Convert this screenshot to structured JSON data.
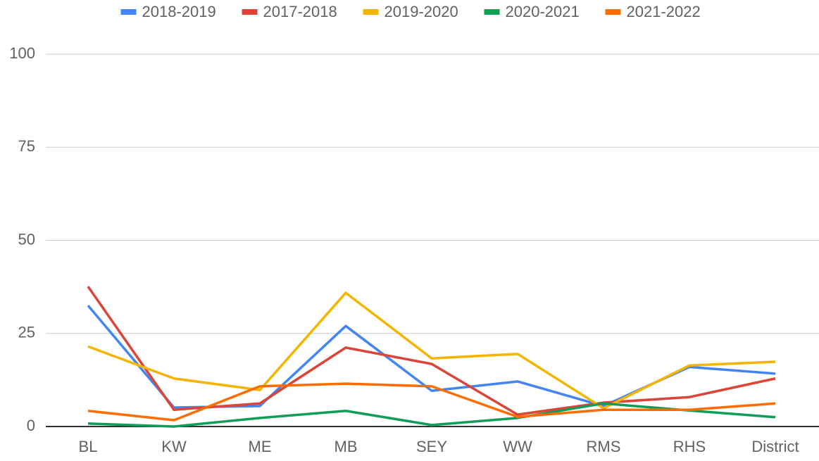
{
  "chart_data": {
    "type": "line",
    "categories": [
      "BL",
      "KW",
      "ME",
      "MB",
      "SEY",
      "WW",
      "RMS",
      "RHS",
      "District"
    ],
    "series": [
      {
        "name": "2018-2019",
        "color": "#4285f4",
        "values": [
          32.5,
          5.1,
          5.5,
          27,
          9.6,
          12.1,
          5.5,
          16,
          14.2
        ]
      },
      {
        "name": "2017-2018",
        "color": "#db4437",
        "values": [
          37.6,
          4.5,
          6.2,
          21.2,
          16.8,
          3.2,
          6.4,
          7.9,
          12.9
        ]
      },
      {
        "name": "2019-2020",
        "color": "#f4b400",
        "values": [
          21.5,
          12.9,
          9.8,
          35.9,
          18.3,
          19.5,
          4.9,
          16.4,
          17.4
        ]
      },
      {
        "name": "2020-2021",
        "color": "#0f9d58",
        "values": [
          0.8,
          0,
          2.3,
          4.2,
          0.4,
          2.3,
          6.2,
          4.3,
          2.5
        ]
      },
      {
        "name": "2021-2022",
        "color": "#ff6d01",
        "values": [
          4.2,
          1.7,
          10.8,
          11.5,
          10.8,
          2.6,
          4.5,
          4.5,
          6.2
        ]
      }
    ],
    "ylim": [
      0,
      100
    ],
    "yticks": [
      0,
      25,
      50,
      75,
      100
    ],
    "grid": true,
    "legend": "top"
  }
}
